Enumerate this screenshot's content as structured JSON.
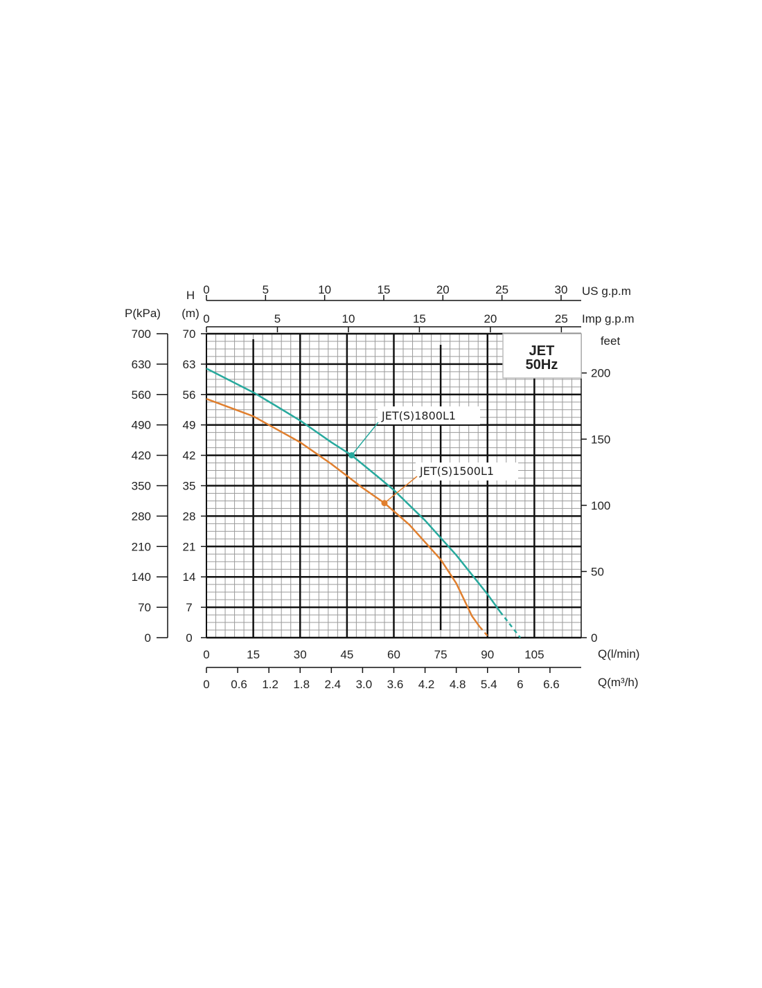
{
  "chart_data": {
    "type": "line",
    "title": "JET",
    "subtitle": "50Hz",
    "axes": {
      "x_lmin": {
        "label": "Q(l/min)",
        "ticks": [
          0,
          15,
          30,
          45,
          60,
          75,
          90,
          105
        ],
        "range": [
          0,
          120
        ]
      },
      "x_m3h": {
        "label": "Q(m³/h)",
        "ticks": [
          "0",
          "0.6",
          "1.2",
          "1.8",
          "2.4",
          "3.0",
          "3.6",
          "4.2",
          "4.8",
          "5.4",
          "6",
          "6.6"
        ]
      },
      "x_usgpm": {
        "label": "US g.p.m",
        "ticks": [
          0,
          5,
          10,
          15,
          20,
          25,
          30
        ]
      },
      "x_impgpm": {
        "label": "Imp g.p.m",
        "ticks": [
          0,
          5,
          10,
          15,
          20,
          25
        ]
      },
      "y_head": {
        "label_line1": "H",
        "label_line2": "(m)",
        "ticks": [
          0,
          7,
          14,
          21,
          28,
          35,
          42,
          49,
          56,
          63,
          70
        ],
        "range": [
          0,
          70
        ]
      },
      "y_pressure": {
        "label": "P(kPa)",
        "ticks": [
          0,
          70,
          140,
          210,
          280,
          350,
          420,
          490,
          560,
          630,
          700
        ]
      },
      "y_feet": {
        "label": "feet",
        "ticks": [
          0,
          50,
          100,
          150,
          200
        ]
      }
    },
    "series": [
      {
        "name": "JET(S)1800L1",
        "color": "#27a99d",
        "x": [
          0,
          15,
          22,
          30,
          40,
          46.5,
          55,
          60,
          70,
          80,
          90,
          94,
          100.5
        ],
        "y": [
          62,
          56.5,
          53.5,
          50,
          45,
          42,
          37,
          34,
          27,
          19,
          10,
          6,
          0
        ],
        "dashed_from_x": 94,
        "callout_point": [
          46.5,
          42
        ]
      },
      {
        "name": "JET(S)1500L1",
        "color": "#e07f2e",
        "x": [
          0,
          15,
          30,
          40,
          50,
          57,
          65,
          75,
          80,
          85,
          87.5,
          90.5
        ],
        "y": [
          55,
          51,
          45,
          40,
          34.5,
          31,
          26,
          18,
          12.5,
          5,
          2.5,
          0
        ],
        "dashed_from_x": 87.5,
        "callout_point": [
          57,
          31
        ]
      }
    ],
    "grid": true
  }
}
